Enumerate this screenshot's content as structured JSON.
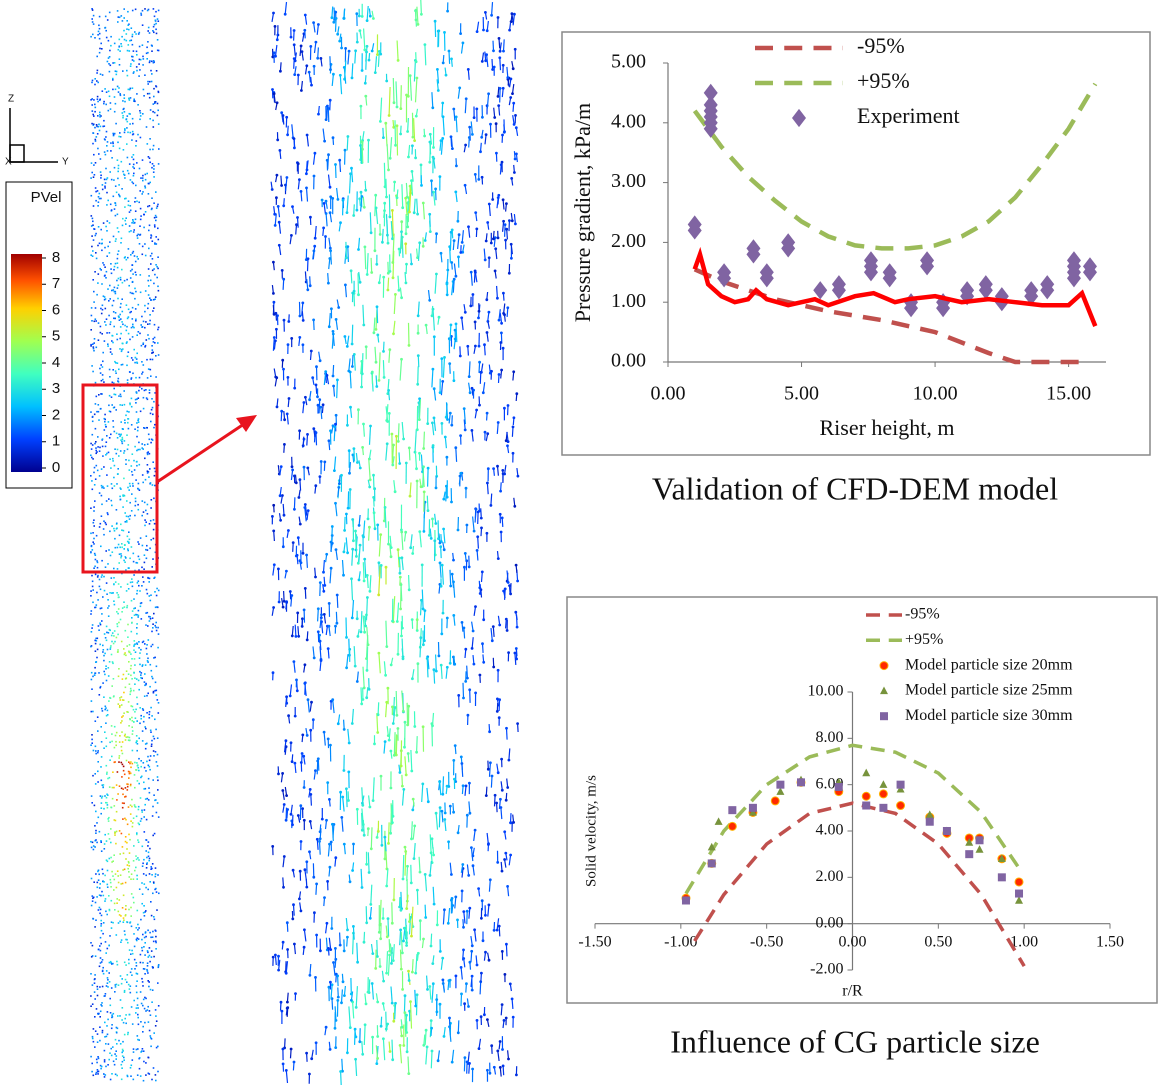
{
  "simulation": {
    "axes": [
      "Z",
      "X",
      "Y"
    ],
    "colorbar_title": "PVel",
    "colorbar_ticks": [
      0,
      1,
      2,
      3,
      4,
      5,
      6,
      7,
      8
    ]
  },
  "chart_data": [
    {
      "type": "line",
      "title": "Validation of CFD-DEM model",
      "xlabel": "Riser height, m",
      "ylabel": "Pressure gradient, kPa/m",
      "xlim": [
        0,
        16.4
      ],
      "ylim": [
        0,
        5
      ],
      "xticks": [
        {
          "value": 0,
          "label": "0.00"
        },
        {
          "value": 5,
          "label": "5.00"
        },
        {
          "value": 10,
          "label": "10.00"
        },
        {
          "value": 15,
          "label": "15.00"
        }
      ],
      "yticks": [
        {
          "value": 0,
          "label": "0.00"
        },
        {
          "value": 1,
          "label": "1.00"
        },
        {
          "value": 2,
          "label": "2.00"
        },
        {
          "value": 3,
          "label": "3.00"
        },
        {
          "value": 4,
          "label": "4.00"
        },
        {
          "value": 5,
          "label": "5.00"
        }
      ],
      "legend": "top",
      "series": [
        {
          "name": "-95%",
          "color": "#c0504d",
          "style": "dashed",
          "x": [
            1,
            2,
            4,
            6,
            8,
            10,
            12,
            13,
            15.5
          ],
          "values": [
            1.55,
            1.35,
            1.05,
            0.85,
            0.7,
            0.5,
            0.15,
            0,
            0
          ]
        },
        {
          "name": "+95%",
          "color": "#9bbb59",
          "style": "dashed",
          "x": [
            1,
            2,
            3,
            4,
            5,
            6,
            7,
            8,
            9,
            10,
            11,
            12,
            13,
            14,
            15,
            16
          ],
          "values": [
            4.2,
            3.6,
            3.1,
            2.7,
            2.35,
            2.1,
            1.95,
            1.9,
            1.9,
            1.95,
            2.1,
            2.35,
            2.75,
            3.3,
            3.9,
            4.65
          ]
        },
        {
          "name": "Experiment",
          "color": "#8064a2",
          "style": "markers",
          "marker": "diamond",
          "x": [
            1,
            1,
            1.6,
            1.6,
            1.6,
            1.6,
            1.6,
            1.6,
            2.1,
            2.1,
            3.2,
            3.2,
            3.7,
            3.7,
            4.5,
            4.5,
            5.7,
            6.4,
            6.4,
            7.6,
            7.6,
            7.6,
            8.3,
            8.3,
            9.1,
            9.1,
            9.7,
            9.7,
            10.3,
            10.3,
            11.2,
            11.2,
            11.9,
            11.9,
            12.5,
            12.5,
            13.6,
            13.6,
            14.2,
            14.2,
            15.2,
            15.2,
            15.2,
            15.2,
            15.8,
            15.8
          ],
          "values": [
            2.2,
            2.3,
            3.9,
            4.0,
            4.1,
            4.2,
            4.3,
            4.5,
            1.4,
            1.5,
            1.8,
            1.9,
            1.4,
            1.5,
            1.9,
            2.0,
            1.2,
            1.2,
            1.3,
            1.5,
            1.6,
            1.7,
            1.4,
            1.5,
            0.9,
            1.0,
            1.6,
            1.7,
            0.9,
            1.0,
            1.1,
            1.2,
            1.2,
            1.3,
            1.0,
            1.1,
            1.1,
            1.2,
            1.2,
            1.3,
            1.4,
            1.5,
            1.6,
            1.7,
            1.5,
            1.6
          ]
        },
        {
          "color": "#ff0000",
          "style": "solid",
          "x": [
            1,
            1.2,
            1.5,
            2,
            2.5,
            3,
            3.3,
            3.7,
            4.5,
            5,
            5.5,
            6,
            7,
            7.7,
            8.5,
            9,
            10,
            11,
            12,
            13,
            14,
            15,
            15.5,
            16
          ],
          "values": [
            1.55,
            1.8,
            1.3,
            1.1,
            1.0,
            1.05,
            1.2,
            1.05,
            0.95,
            1.0,
            1.05,
            0.95,
            1.1,
            1.15,
            1.0,
            1.05,
            1.1,
            1.0,
            1.05,
            1.0,
            0.95,
            0.95,
            1.15,
            0.6
          ]
        }
      ]
    },
    {
      "type": "line",
      "title": "Influence of CG particle size",
      "xlabel": "r/R",
      "ylabel": "Solid velocity, m/s",
      "xlim": [
        -1.5,
        1.5
      ],
      "ylim": [
        -2,
        10
      ],
      "axes_cross_zero": true,
      "xticks": [
        {
          "value": -1.5,
          "label": "-1.50"
        },
        {
          "value": -1,
          "label": "-1.00"
        },
        {
          "value": -0.5,
          "label": "-0.50"
        },
        {
          "value": 0,
          "label": "0.00"
        },
        {
          "value": 0.5,
          "label": "0.50"
        },
        {
          "value": 1,
          "label": "1.00"
        },
        {
          "value": 1.5,
          "label": "1.50"
        }
      ],
      "yticks": [
        {
          "value": -2,
          "label": "-2.00"
        },
        {
          "value": 0,
          "label": "0.00"
        },
        {
          "value": 2,
          "label": "2.00"
        },
        {
          "value": 4,
          "label": "4.00"
        },
        {
          "value": 6,
          "label": "6.00"
        },
        {
          "value": 8,
          "label": "8.00"
        },
        {
          "value": 10,
          "label": "10.00"
        }
      ],
      "legend": "top",
      "series": [
        {
          "name": "-95%",
          "color": "#c0504d",
          "style": "dashed",
          "x": [
            -0.92,
            -0.75,
            -0.5,
            -0.25,
            0,
            0.25,
            0.5,
            0.75,
            1.0
          ],
          "values": [
            -0.75,
            1.25,
            3.44,
            4.76,
            5.2,
            4.76,
            3.44,
            1.25,
            -1.83
          ]
        },
        {
          "name": "+95%",
          "color": "#9bbb59",
          "style": "dashed",
          "x": [
            -0.97,
            -0.75,
            -0.5,
            -0.25,
            0,
            0.25,
            0.5,
            0.75,
            0.97
          ],
          "values": [
            1.3,
            4.0,
            6.0,
            7.2,
            7.7,
            7.4,
            6.5,
            4.8,
            2.4
          ]
        },
        {
          "name": "Model particle size 20mm",
          "color": "#ff2a00",
          "style": "markers",
          "marker": "circle",
          "x": [
            -0.97,
            -0.82,
            -0.7,
            -0.58,
            -0.45,
            -0.3,
            -0.08,
            0.08,
            0.18,
            0.28,
            0.45,
            0.55,
            0.68,
            0.74,
            0.87,
            0.97
          ],
          "values": [
            1.1,
            2.6,
            4.2,
            4.8,
            5.3,
            6.1,
            5.7,
            5.5,
            5.6,
            5.1,
            4.6,
            3.9,
            3.7,
            3.7,
            2.8,
            1.8
          ]
        },
        {
          "name": "Model particle size 25mm",
          "color": "#77933c",
          "style": "markers",
          "marker": "triangle",
          "x": [
            -0.97,
            -0.82,
            -0.78,
            -0.58,
            -0.42,
            -0.3,
            -0.08,
            0.08,
            0.18,
            0.28,
            0.45,
            0.55,
            0.68,
            0.74,
            0.87,
            0.97
          ],
          "values": [
            1.0,
            3.3,
            4.4,
            4.8,
            5.7,
            6.2,
            6.1,
            6.5,
            6.0,
            5.8,
            4.7,
            4.0,
            3.5,
            3.2,
            2.8,
            1.0
          ]
        },
        {
          "name": "Model particle size 30mm",
          "color": "#8064a2",
          "style": "markers",
          "marker": "square",
          "x": [
            -0.97,
            -0.82,
            -0.7,
            -0.58,
            -0.42,
            -0.3,
            -0.08,
            0.08,
            0.18,
            0.28,
            0.45,
            0.55,
            0.68,
            0.74,
            0.87,
            0.97
          ],
          "values": [
            1.0,
            2.6,
            4.9,
            5.0,
            6.0,
            6.1,
            5.9,
            5.1,
            5.0,
            6.0,
            4.4,
            4.0,
            3.0,
            3.6,
            2.0,
            1.3
          ]
        }
      ]
    }
  ]
}
